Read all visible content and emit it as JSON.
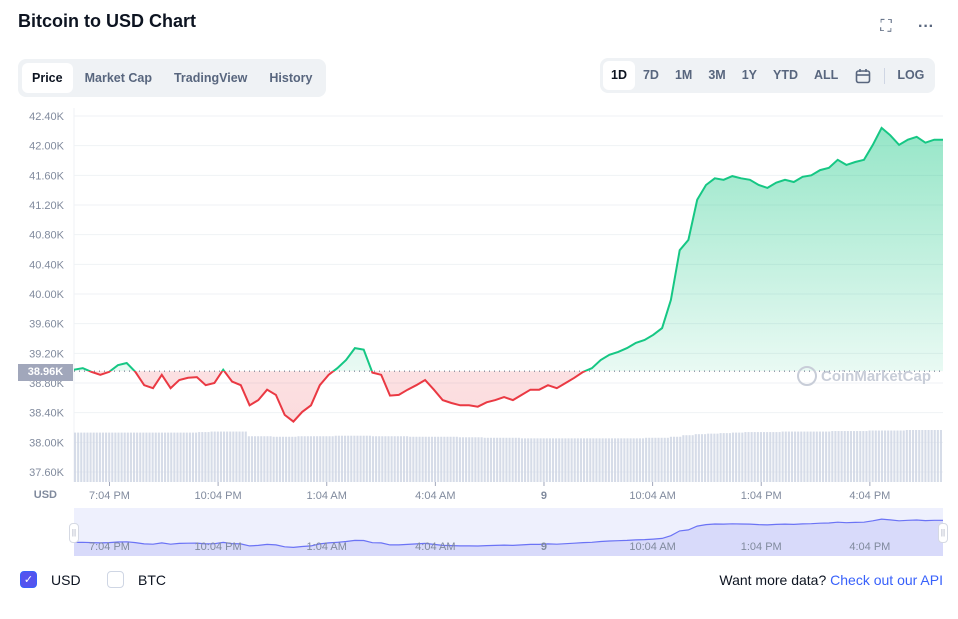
{
  "title": "Bitcoin to USD Chart",
  "icons": {
    "fullscreen": "fullscreen-icon",
    "more": "more-icon",
    "calendar": "calendar-icon"
  },
  "tabs": [
    {
      "label": "Price",
      "active": true
    },
    {
      "label": "Market Cap"
    },
    {
      "label": "TradingView"
    },
    {
      "label": "History"
    }
  ],
  "ranges": [
    {
      "label": "1D",
      "active": true
    },
    {
      "label": "7D"
    },
    {
      "label": "1M"
    },
    {
      "label": "3M"
    },
    {
      "label": "1Y"
    },
    {
      "label": "YTD"
    },
    {
      "label": "ALL"
    }
  ],
  "log_label": "LOG",
  "current_price_label": "38.96K",
  "watermark": "CoinMarketCap",
  "legend": {
    "usd": "USD",
    "btc": "BTC"
  },
  "more_data": {
    "text": "Want more data?",
    "link": "Check out our API"
  },
  "colors": {
    "up": "#16c784",
    "down": "#ea3943",
    "nav_line": "#6b73f5",
    "nav_bg": "#eef0fd"
  },
  "chart_data": {
    "type": "line",
    "currency_label": "USD",
    "ylim": [
      37.6,
      42.4
    ],
    "yticks": [
      "42.40K",
      "42.00K",
      "41.60K",
      "41.20K",
      "40.80K",
      "40.40K",
      "40.00K",
      "39.60K",
      "39.20K",
      "38.80K",
      "38.40K",
      "38.00K",
      "37.60K"
    ],
    "xticks": [
      "7:04 PM",
      "10:04 PM",
      "1:04 AM",
      "4:04 AM",
      "9",
      "10:04 AM",
      "1:04 PM",
      "4:04 PM"
    ],
    "baseline": 38.96,
    "x_hours_from_start": {
      "first_tick": 0.98,
      "tick_step": 3,
      "span": 24
    },
    "price_k": [
      38.98,
      39.0,
      38.95,
      38.91,
      38.95,
      39.04,
      39.07,
      38.95,
      38.77,
      38.73,
      38.91,
      38.73,
      38.84,
      38.87,
      38.88,
      38.77,
      38.8,
      38.98,
      38.82,
      38.77,
      38.5,
      38.57,
      38.71,
      38.64,
      38.37,
      38.28,
      38.41,
      38.5,
      38.77,
      38.91,
      39.0,
      39.11,
      39.27,
      39.25,
      38.94,
      38.91,
      38.63,
      38.64,
      38.71,
      38.77,
      38.84,
      38.71,
      38.57,
      38.53,
      38.5,
      38.5,
      38.48,
      38.54,
      38.57,
      38.61,
      38.57,
      38.64,
      38.71,
      38.71,
      38.77,
      38.73,
      38.8,
      38.87,
      38.95,
      39.0,
      39.11,
      39.18,
      39.22,
      39.27,
      39.34,
      39.38,
      39.45,
      39.54,
      39.92,
      40.59,
      40.73,
      41.27,
      41.47,
      41.56,
      41.54,
      41.59,
      41.56,
      41.54,
      41.47,
      41.43,
      41.5,
      41.54,
      41.51,
      41.58,
      41.6,
      41.67,
      41.7,
      41.81,
      41.74,
      41.78,
      41.81,
      42.01,
      42.24,
      42.14,
      42.01,
      42.08,
      42.12,
      42.04,
      42.08,
      42.08
    ],
    "volume_rel": [
      0.95,
      0.95,
      0.95,
      0.95,
      0.95,
      0.95,
      0.95,
      0.95,
      0.95,
      0.95,
      0.96,
      0.97,
      0.97,
      0.97,
      0.88,
      0.88,
      0.87,
      0.87,
      0.88,
      0.88,
      0.88,
      0.89,
      0.89,
      0.89,
      0.88,
      0.88,
      0.88,
      0.87,
      0.87,
      0.87,
      0.87,
      0.86,
      0.86,
      0.85,
      0.85,
      0.85,
      0.84,
      0.84,
      0.84,
      0.84,
      0.84,
      0.84,
      0.84,
      0.84,
      0.84,
      0.84,
      0.85,
      0.85,
      0.87,
      0.9,
      0.92,
      0.93,
      0.94,
      0.95,
      0.96,
      0.96,
      0.96,
      0.97,
      0.97,
      0.97,
      0.97,
      0.98,
      0.98,
      0.98,
      0.99,
      0.99,
      0.99,
      1.0,
      1.0,
      1.0
    ]
  }
}
